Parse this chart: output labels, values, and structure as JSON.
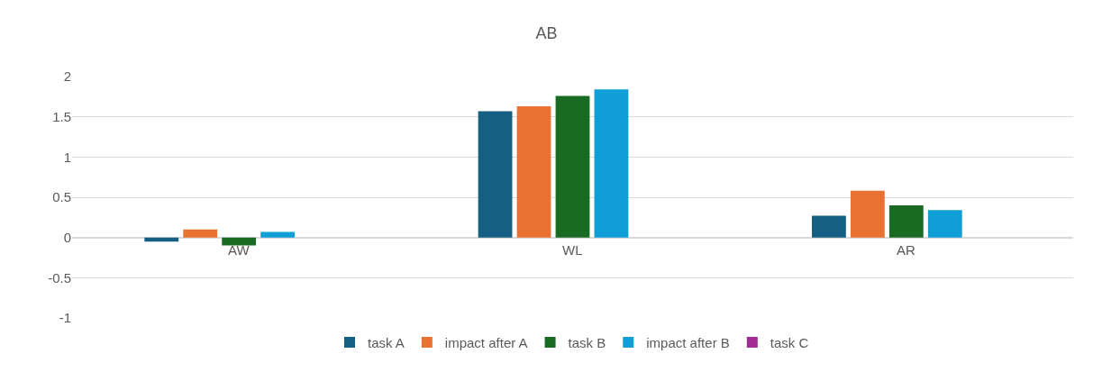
{
  "chart_data": {
    "type": "bar",
    "title": "AB",
    "categories": [
      "AW",
      "WL",
      "AR"
    ],
    "series": [
      {
        "name": "task A",
        "color": "#155f82",
        "values": [
          -0.05,
          1.57,
          0.27
        ]
      },
      {
        "name": "impact after A",
        "color": "#e97132",
        "values": [
          0.1,
          1.63,
          0.58
        ]
      },
      {
        "name": "task B",
        "color": "#196b24",
        "values": [
          -0.1,
          1.76,
          0.4
        ]
      },
      {
        "name": "impact after B",
        "color": "#0f9ed5",
        "values": [
          0.07,
          1.84,
          0.34
        ]
      },
      {
        "name": "task C",
        "color": "#a02b93",
        "values": [
          null,
          null,
          null
        ]
      }
    ],
    "ylim": [
      -1,
      2
    ],
    "yticks": [
      -1,
      -0.5,
      0,
      0.5,
      1,
      1.5,
      2
    ],
    "grid": "y",
    "legend": "bottom"
  }
}
